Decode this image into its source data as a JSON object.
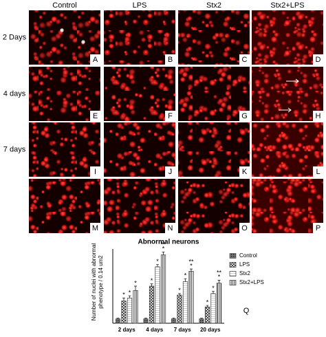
{
  "figure": {
    "columns": [
      "Control",
      "LPS",
      "Stx2",
      "Stx2+LPS"
    ],
    "rows": [
      "2 Days",
      "4 days",
      "7 days"
    ],
    "panels": [
      "A",
      "B",
      "C",
      "D",
      "E",
      "F",
      "G",
      "H",
      "I",
      "J",
      "K",
      "L",
      "M",
      "N",
      "O",
      "P"
    ],
    "chart_label": "Q"
  },
  "chart_data": {
    "type": "bar",
    "title": "Abnormal neurons",
    "ylabel": [
      "Number of nuclei with abnormal",
      "phenotype / 0.14 um2"
    ],
    "categories": [
      "2 days",
      "4 days",
      "7 days",
      "20 days"
    ],
    "ylim": [
      0,
      50
    ],
    "series": [
      {
        "name": "Control",
        "color": "#555555",
        "pattern": "dots",
        "values": [
          3,
          3,
          3,
          3
        ],
        "errors": [
          0.5,
          0.5,
          0.5,
          0.5
        ],
        "significance": [
          null,
          null,
          null,
          null
        ]
      },
      {
        "name": "LPS",
        "color": "#333333",
        "pattern": "crosshatch",
        "values": [
          15,
          25,
          19,
          11
        ],
        "errors": [
          2,
          1.5,
          1,
          1
        ],
        "significance": [
          [
            "*"
          ],
          [
            "*"
          ],
          [
            "*"
          ],
          [
            "*"
          ]
        ]
      },
      {
        "name": "Stx2",
        "color": "#333333",
        "pattern": "hlines",
        "values": [
          17,
          38,
          28,
          20
        ],
        "errors": [
          1.5,
          1.5,
          2,
          1.5
        ],
        "significance": [
          [
            "*"
          ],
          [
            "*"
          ],
          [
            "*"
          ],
          [
            "*"
          ]
        ]
      },
      {
        "name": "Stx2+LPS",
        "color": "#333333",
        "pattern": "vlines",
        "values": [
          22,
          46,
          35,
          27
        ],
        "errors": [
          3,
          2,
          1.5,
          2
        ],
        "significance": [
          [
            "*"
          ],
          [
            "**",
            "*"
          ],
          [
            "**",
            "*"
          ],
          [
            "**",
            "*"
          ]
        ]
      }
    ]
  }
}
